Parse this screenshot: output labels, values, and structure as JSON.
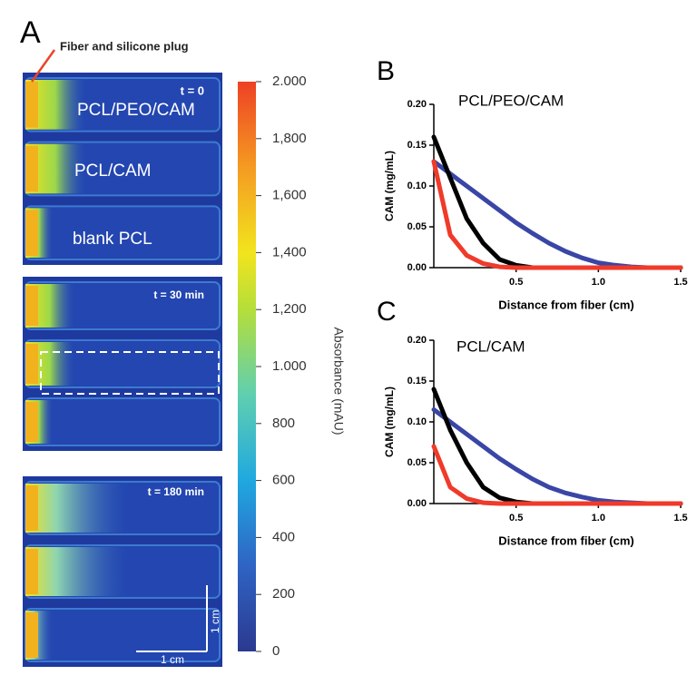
{
  "panel_a": {
    "label": "A",
    "annotation": "Fiber and silicone plug",
    "times": [
      "t = 0",
      "t = 30 min",
      "t = 180 min"
    ],
    "samples": [
      "PCL/PEO/CAM",
      "PCL/CAM",
      "blank PCL"
    ],
    "scale_bars": [
      "1 cm",
      "1 cm"
    ],
    "colorbar": {
      "title": "Absorbance (mAU)",
      "lim": [
        0,
        2000
      ],
      "ticks": [
        0,
        200,
        400,
        600,
        800,
        {
          "value": 1000,
          "label": "1.000"
        },
        {
          "value": 1200,
          "label": "1,200"
        },
        {
          "value": 1400,
          "label": "1,400"
        },
        {
          "value": 1600,
          "label": "1,600"
        },
        {
          "value": 1800,
          "label": "1,800"
        },
        {
          "value": 2000,
          "label": "2.000"
        }
      ]
    }
  },
  "chart_data": [
    {
      "type": "line",
      "panel": "B",
      "title": "PCL/PEO/CAM",
      "x_label": "Distance from fiber (cm)",
      "y_label": "CAM (mg/mL)",
      "x": [
        0,
        0.1,
        0.2,
        0.3,
        0.4,
        0.5,
        0.6,
        0.7,
        0.8,
        0.9,
        1.0,
        1.1,
        1.2,
        1.3,
        1.4,
        1.5
      ],
      "series": [
        {
          "color": "#3a46a6",
          "values": [
            0.13,
            0.115,
            0.1,
            0.085,
            0.07,
            0.055,
            0.042,
            0.03,
            0.02,
            0.012,
            0.006,
            0.003,
            0.001,
            0,
            0,
            0
          ]
        },
        {
          "color": "#000000",
          "values": [
            0.16,
            0.11,
            0.06,
            0.03,
            0.01,
            0.003,
            0,
            0,
            0,
            0,
            0,
            0,
            0,
            0,
            0,
            0
          ]
        },
        {
          "color": "#f03a2a",
          "values": [
            0.13,
            0.04,
            0.015,
            0.005,
            0.001,
            0,
            0,
            0,
            0,
            0,
            0,
            0,
            0,
            0,
            0,
            0
          ]
        }
      ],
      "xlim": [
        0,
        1.5
      ],
      "xticks": [
        0.5,
        {
          "value": 1.0,
          "label": "1.0"
        },
        1.5
      ],
      "ylim": [
        0,
        0.2
      ],
      "yticks": [
        {
          "value": 0,
          "label": "0.00"
        },
        0.05,
        {
          "value": 0.1,
          "label": "0.10"
        },
        0.15,
        {
          "value": 0.2,
          "label": "0.20"
        }
      ]
    },
    {
      "type": "line",
      "panel": "C",
      "title": "PCL/CAM",
      "x_label": "Distance from fiber (cm)",
      "y_label": "CAM (mg/mL)",
      "x": [
        0,
        0.1,
        0.2,
        0.3,
        0.4,
        0.5,
        0.6,
        0.7,
        0.8,
        0.9,
        1.0,
        1.1,
        1.2,
        1.3,
        1.4,
        1.5
      ],
      "series": [
        {
          "color": "#3a46a6",
          "values": [
            0.115,
            0.1,
            0.085,
            0.07,
            0.055,
            0.042,
            0.03,
            0.02,
            0.013,
            0.008,
            0.004,
            0.002,
            0.001,
            0,
            0,
            0
          ]
        },
        {
          "color": "#000000",
          "values": [
            0.14,
            0.09,
            0.05,
            0.02,
            0.007,
            0.002,
            0,
            0,
            0,
            0,
            0,
            0,
            0,
            0,
            0,
            0
          ]
        },
        {
          "color": "#f03a2a",
          "values": [
            0.07,
            0.02,
            0.006,
            0.001,
            0,
            0,
            0,
            0,
            0,
            0,
            0,
            0,
            0,
            0,
            0,
            0
          ]
        }
      ],
      "xlim": [
        0,
        1.5
      ],
      "xticks": [
        0.5,
        {
          "value": 1.0,
          "label": "1.0"
        },
        1.5
      ],
      "ylim": [
        0,
        0.2
      ],
      "yticks": [
        {
          "value": 0,
          "label": "0.00"
        },
        0.05,
        {
          "value": 0.1,
          "label": "0.10"
        },
        0.15,
        {
          "value": 0.2,
          "label": "0.20"
        }
      ]
    }
  ]
}
